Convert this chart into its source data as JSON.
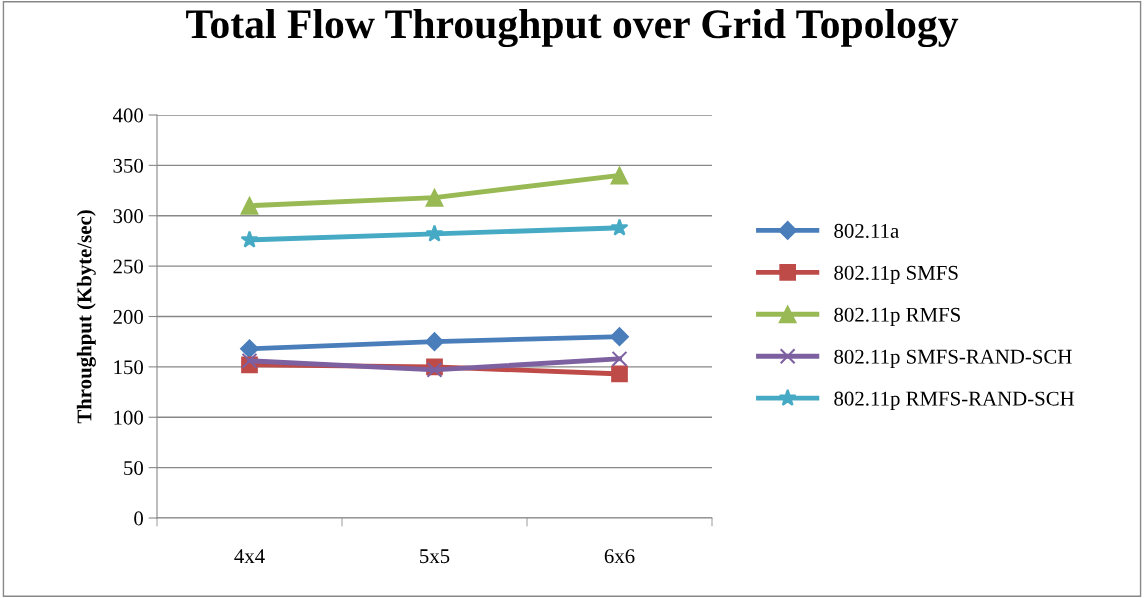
{
  "chart_data": {
    "type": "line",
    "title": "Total Flow Throughput over Grid Topology",
    "ylabel": "Throughput (Kbyte/sec)",
    "categories": [
      "4x4",
      "5x5",
      "6x6"
    ],
    "ylim": [
      0,
      400
    ],
    "yticks": [
      0,
      50,
      100,
      150,
      200,
      250,
      300,
      350,
      400
    ],
    "grid": "y",
    "legend": "right",
    "series": [
      {
        "name": "802.11a",
        "color": "#4a7ebb",
        "marker": "diamond",
        "values": [
          168,
          175,
          180
        ]
      },
      {
        "name": "802.11p SMFS",
        "color": "#be4b48",
        "marker": "square",
        "values": [
          152,
          150,
          143
        ]
      },
      {
        "name": "802.11p RMFS",
        "color": "#98b954",
        "marker": "triangle",
        "values": [
          310,
          318,
          340
        ]
      },
      {
        "name": "802.11p SMFS-RAND-SCH",
        "color": "#7d60a0",
        "marker": "cross",
        "values": [
          156,
          147,
          158
        ]
      },
      {
        "name": "802.11p RMFS-RAND-SCH",
        "color": "#46aac5",
        "marker": "star",
        "values": [
          276,
          282,
          288
        ]
      }
    ]
  }
}
